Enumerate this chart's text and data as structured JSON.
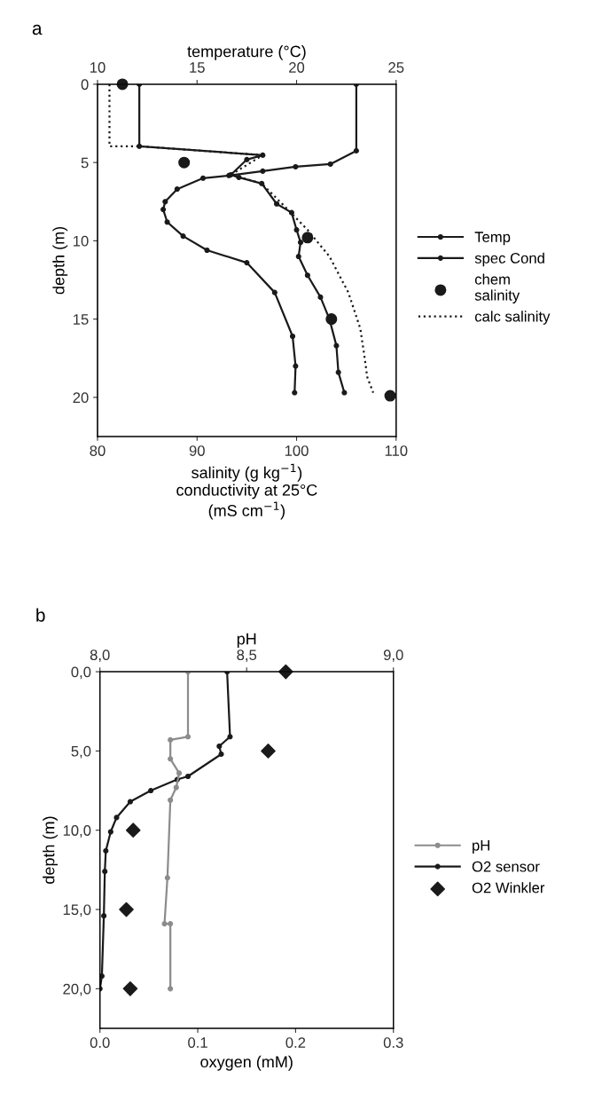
{
  "chart_data": [
    {
      "type": "line",
      "title": "a",
      "xlabel": "salinity (g kg$^{−1}$)\nconductivity at 25°C\n(mS cm$^{−1}$)",
      "x2label": "temperature (°C)",
      "ylabel": "depth (m)",
      "xlim": [
        80,
        110
      ],
      "xticks": [
        80,
        90,
        100,
        110
      ],
      "x2lim": [
        10,
        25
      ],
      "x2ticks": [
        10,
        15,
        20,
        25
      ],
      "ylim": [
        22.5,
        0
      ],
      "yticks": [
        0,
        5,
        10,
        15,
        20
      ],
      "legend": "right",
      "grid": false,
      "series": [
        {
          "name": "Temp",
          "axis": "x2",
          "marker": "circle",
          "color": "#1a1a1a",
          "values": [
            0,
            4.25,
            5.1,
            5.27,
            5.55,
            5.83,
            6.0,
            6.7,
            7.5,
            8.0,
            8.8,
            9.7,
            10.6,
            11.4,
            13.3,
            16.1,
            18.0,
            19.7
          ],
          "x": [
            23.0,
            23.0,
            21.7,
            19.95,
            18.3,
            16.6,
            15.3,
            14.0,
            13.4,
            13.3,
            13.5,
            14.3,
            15.5,
            17.5,
            18.9,
            19.8,
            19.95,
            19.9
          ]
        },
        {
          "name": "spec Cond",
          "marker": "circle",
          "color": "#1a1a1a",
          "values": [
            0,
            3.96,
            4.53,
            4.81,
            5.78,
            5.95,
            6.34,
            7.64,
            8.2,
            9.3,
            10.1,
            11.0,
            12.2,
            13.6,
            15.0,
            16.7,
            18.4,
            19.7
          ],
          "x": [
            84.2,
            84.2,
            96.6,
            95.0,
            93.4,
            94.2,
            96.5,
            98.0,
            99.5,
            100.0,
            100.4,
            100.2,
            101.1,
            102.4,
            103.3,
            104.0,
            104.2,
            104.8
          ]
        },
        {
          "name": "chem\nsalinity",
          "type": "scatter",
          "marker": "circle",
          "color": "#1a1a1a",
          "values": [
            0,
            5.0,
            9.8,
            15.0,
            19.9
          ],
          "x": [
            82.5,
            88.7,
            101.1,
            103.5,
            109.4
          ]
        },
        {
          "name": "calc salinity",
          "line_style": "dotted",
          "color": "#1a1a1a",
          "values": [
            0,
            3.96,
            3.96,
            4.53,
            5.78,
            6.34,
            7.8,
            9.3,
            11.0,
            13.3,
            15.6,
            17.3,
            18.7,
            19.7
          ],
          "x": [
            81.2,
            81.2,
            84.2,
            96.6,
            93.4,
            96.5,
            98.8,
            101.1,
            103.3,
            105.2,
            106.4,
            106.8,
            107.1,
            107.7
          ]
        }
      ]
    },
    {
      "type": "line",
      "title": "b",
      "xlabel": "oxygen (mM)",
      "x2label": "pH",
      "ylabel": "depth (m)",
      "xlim": [
        0,
        0.3
      ],
      "xticks": [
        {
          "value": 0,
          "label": "0.0"
        },
        0.1,
        0.2,
        0.3
      ],
      "x2lim": [
        8.0,
        9.0
      ],
      "x2ticks": [
        {
          "value": 8.0,
          "label": "8,0"
        },
        {
          "value": 8.5,
          "label": "8,5"
        },
        {
          "value": 9.0,
          "label": "9,0"
        }
      ],
      "ylim": [
        22.5,
        0
      ],
      "yticks": [
        {
          "value": 0,
          "label": "0,0"
        },
        {
          "value": 5,
          "label": "5,0"
        },
        {
          "value": 10,
          "label": "10,0"
        },
        {
          "value": 15,
          "label": "15,0"
        },
        {
          "value": 20,
          "label": "20,0"
        }
      ],
      "legend": "right",
      "grid": false,
      "series": [
        {
          "name": "pH",
          "axis": "x2",
          "marker": "circle",
          "color": "#8c8c8c",
          "values": [
            0,
            4.1,
            4.3,
            5.5,
            6.4,
            7.3,
            8.1,
            13.0,
            15.9,
            15.9,
            20.0
          ],
          "x": [
            8.3,
            8.3,
            8.24,
            8.24,
            8.27,
            8.26,
            8.24,
            8.23,
            8.22,
            8.24,
            8.24
          ]
        },
        {
          "name": "O2 sensor",
          "marker": "circle",
          "color": "#1a1a1a",
          "values": [
            0,
            4.1,
            4.7,
            5.2,
            6.6,
            6.8,
            7.5,
            8.2,
            9.2,
            10.1,
            11.3,
            12.6,
            15.4,
            19.2,
            20.0
          ],
          "x": [
            0.13,
            0.133,
            0.122,
            0.124,
            0.09,
            0.079,
            0.052,
            0.031,
            0.017,
            0.011,
            0.006,
            0.005,
            0.004,
            0.002,
            0.0
          ]
        },
        {
          "name": "O2 Winkler",
          "type": "scatter",
          "marker": "diamond",
          "color": "#1a1a1a",
          "values": [
            0,
            5.0,
            10.0,
            15.0,
            20.0
          ],
          "x": [
            0.19,
            0.172,
            0.034,
            0.027,
            0.031
          ]
        }
      ]
    }
  ]
}
